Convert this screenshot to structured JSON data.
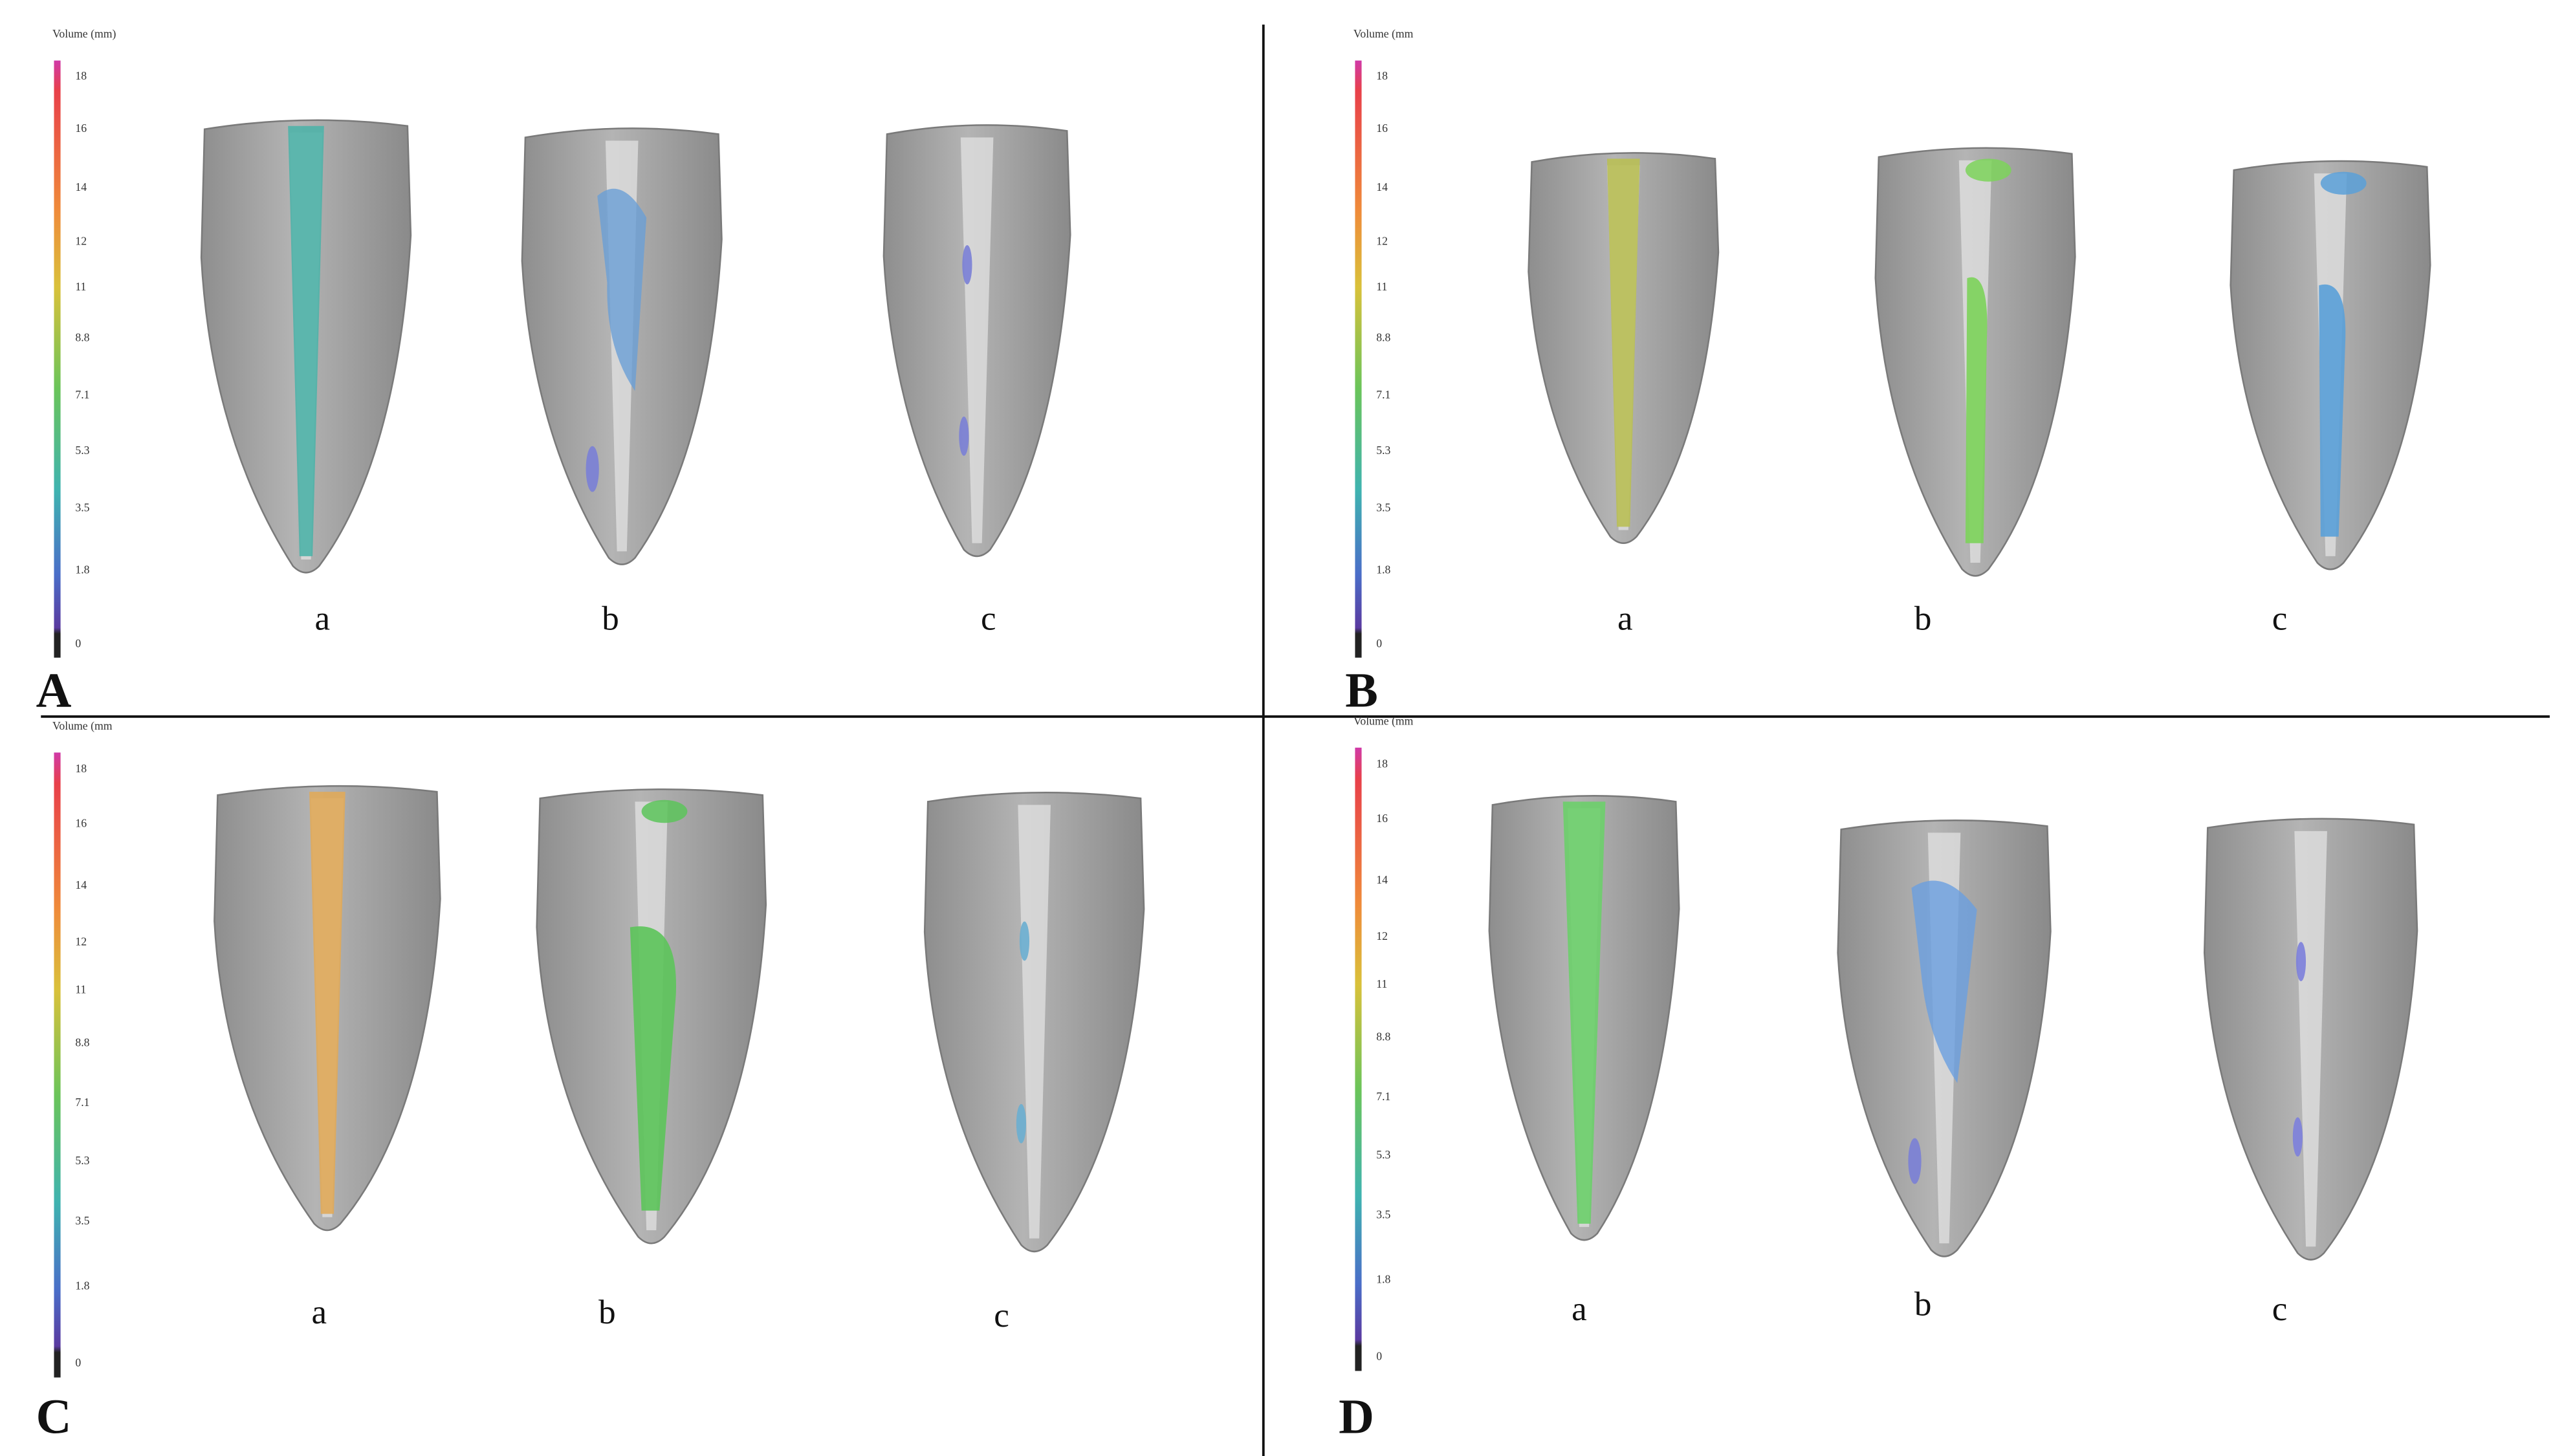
{
  "panels": [
    {
      "label": "A",
      "colorbar": {
        "title": "Volume (mm)",
        "ticks": [
          "18",
          "16",
          "14",
          "12",
          "11",
          "8.8",
          "7.1",
          "5.3",
          "3.5",
          "1.8",
          "0"
        ]
      },
      "samples": [
        "a",
        "b",
        "c"
      ]
    },
    {
      "label": "B",
      "colorbar": {
        "title": "Volume (mm",
        "ticks": [
          "18",
          "16",
          "14",
          "12",
          "11",
          "8.8",
          "7.1",
          "5.3",
          "3.5",
          "1.8",
          "0"
        ]
      },
      "samples": [
        "a",
        "b",
        "c"
      ]
    },
    {
      "label": "C",
      "colorbar": {
        "title": "Volume (mm",
        "ticks": [
          "18",
          "16",
          "14",
          "12",
          "11",
          "8.8",
          "7.1",
          "5.3",
          "3.5",
          "1.8",
          "0"
        ]
      },
      "samples": [
        "a",
        "b",
        "c"
      ]
    },
    {
      "label": "D",
      "colorbar": {
        "title": "Volume (mm",
        "ticks": [
          "18",
          "16",
          "14",
          "12",
          "11",
          "8.8",
          "7.1",
          "5.3",
          "3.5",
          "1.8",
          "0"
        ]
      },
      "samples": [
        "a",
        "b",
        "c"
      ]
    }
  ]
}
